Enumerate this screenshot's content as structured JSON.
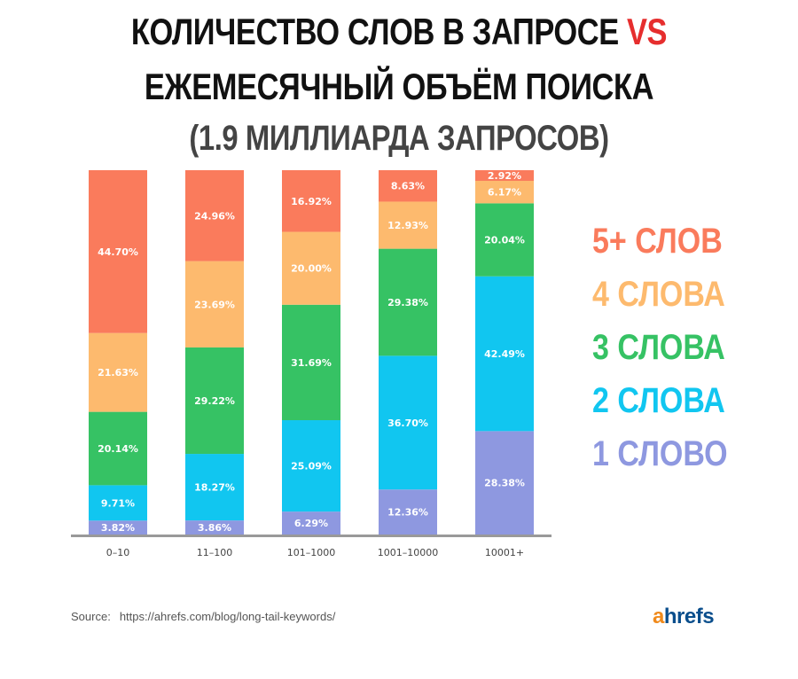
{
  "title": {
    "line1_prefix": "КОЛИЧЕСТВО СЛОВ В ЗАПРОСЕ ",
    "line1_vs": "VS",
    "line2": "ЕЖЕМЕСЯЧНЫЙ ОБЪЁМ ПОИСКА",
    "line3": "(1.9 МИЛЛИАРДА ЗАПРОСОВ)"
  },
  "source": {
    "label": "Source:",
    "url": "https://ahrefs.com/blog/long-tail-keywords/"
  },
  "logo": {
    "a": "a",
    "rest": "hrefs"
  },
  "chart_data": {
    "type": "bar",
    "stacked": true,
    "normalized_percent": true,
    "categories": [
      "0–10",
      "11–100",
      "101–1000",
      "1001–10000",
      "10001+"
    ],
    "series": [
      {
        "name": "1 СЛОВО",
        "color": "#8e98e0",
        "values": [
          3.82,
          3.86,
          6.29,
          12.36,
          28.38
        ],
        "labels": [
          "3.82%",
          "3.86%",
          "6.29%",
          "12.36%",
          "28.38%"
        ]
      },
      {
        "name": "2 СЛОВА",
        "color": "#11c6f0",
        "values": [
          9.71,
          18.27,
          25.09,
          36.7,
          42.49
        ],
        "labels": [
          "9.71%",
          "18.27%",
          "25.09%",
          "36.70%",
          "42.49%"
        ]
      },
      {
        "name": "3 СЛОВА",
        "color": "#36c264",
        "values": [
          20.14,
          29.22,
          31.69,
          29.38,
          20.04
        ],
        "labels": [
          "20.14%",
          "29.22%",
          "31.69%",
          "29.38%",
          "20.04%"
        ]
      },
      {
        "name": "4 СЛОВА",
        "color": "#fdba6e",
        "values": [
          21.63,
          23.69,
          20.0,
          12.93,
          6.17
        ],
        "labels": [
          "21.63%",
          "23.69%",
          "20.00%",
          "12.93%",
          "6.17%"
        ]
      },
      {
        "name": "5+ СЛОВ",
        "color": "#fa7b5c",
        "values": [
          44.7,
          24.96,
          16.92,
          8.63,
          2.92
        ],
        "labels": [
          "44.70%",
          "24.96%",
          "16.92%",
          "8.63%",
          "2.92%"
        ]
      }
    ],
    "legend_order": [
      "5+ СЛОВ",
      "4 СЛОВА",
      "3 СЛОВА",
      "2 СЛОВА",
      "1 СЛОВО"
    ],
    "legend_position": "right",
    "ylim": [
      0,
      100
    ],
    "grid": false
  }
}
